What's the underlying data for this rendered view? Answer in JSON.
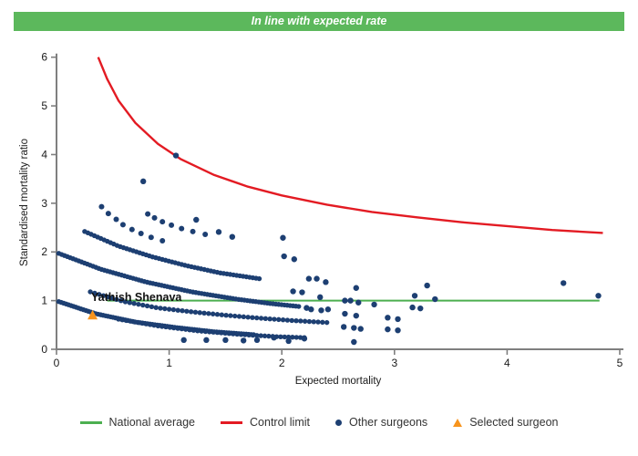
{
  "header": {
    "title": "In line with expected rate",
    "background": "#5CB85C"
  },
  "legend": {
    "items": [
      {
        "label": "National average",
        "marker": "line",
        "color": "#4CAF50"
      },
      {
        "label": "Control limit",
        "marker": "line",
        "color": "#E31B23"
      },
      {
        "label": "Other surgeons",
        "marker": "dot",
        "color": "#1D3F72"
      },
      {
        "label": "Selected surgeon",
        "marker": "triangle",
        "color": "#F7941D"
      }
    ]
  },
  "chart_data": {
    "type": "scatter",
    "xlabel": "Expected mortality",
    "ylabel": "Standardised mortality ratio",
    "xlim": [
      0,
      5
    ],
    "ylim": [
      0,
      6
    ],
    "x_ticks": [
      0,
      1,
      2,
      3,
      4,
      5
    ],
    "y_ticks": [
      0,
      1,
      2,
      3,
      4,
      5,
      6
    ],
    "grid": false,
    "legend_position": "bottom",
    "axis_color": "#7f7f7f",
    "national_average": {
      "y": 1.0,
      "x_start": 0.45,
      "x_end": 4.82,
      "color": "#4CAF50"
    },
    "control_limit": {
      "color": "#E31B23",
      "points": [
        [
          0.37,
          6.0
        ],
        [
          0.45,
          5.55
        ],
        [
          0.55,
          5.11
        ],
        [
          0.7,
          4.65
        ],
        [
          0.9,
          4.22
        ],
        [
          1.1,
          3.91
        ],
        [
          1.4,
          3.58
        ],
        [
          1.7,
          3.34
        ],
        [
          2.0,
          3.16
        ],
        [
          2.4,
          2.97
        ],
        [
          2.8,
          2.82
        ],
        [
          3.2,
          2.71
        ],
        [
          3.6,
          2.61
        ],
        [
          4.0,
          2.53
        ],
        [
          4.4,
          2.45
        ],
        [
          4.85,
          2.39
        ]
      ]
    },
    "other_surgeons": {
      "color": "#1D3F72",
      "bands": [
        {
          "n": 80,
          "control_points": [
            [
              0.02,
              0.98
            ],
            [
              0.35,
              0.73
            ],
            [
              0.7,
              0.56
            ],
            [
              1.05,
              0.45
            ],
            [
              1.4,
              0.36
            ],
            [
              1.75,
              0.3
            ]
          ]
        },
        {
          "n": 85,
          "control_points": [
            [
              0.02,
              1.97
            ],
            [
              0.4,
              1.64
            ],
            [
              0.8,
              1.38
            ],
            [
              1.2,
              1.18
            ],
            [
              1.6,
              1.03
            ],
            [
              1.9,
              0.94
            ],
            [
              2.15,
              0.88
            ]
          ]
        },
        {
          "n": 55,
          "control_points": [
            [
              0.25,
              2.42
            ],
            [
              0.55,
              2.12
            ],
            [
              0.85,
              1.9
            ],
            [
              1.15,
              1.72
            ],
            [
              1.45,
              1.57
            ],
            [
              1.8,
              1.45
            ]
          ]
        },
        {
          "n": 48,
          "control_points": [
            [
              0.55,
              0.62
            ],
            [
              0.9,
              0.48
            ],
            [
              1.25,
              0.38
            ],
            [
              1.6,
              0.31
            ],
            [
              1.95,
              0.26
            ],
            [
              2.2,
              0.24
            ]
          ]
        },
        {
          "n": 55,
          "control_points": [
            [
              0.3,
              1.18
            ],
            [
              0.6,
              0.98
            ],
            [
              0.9,
              0.85
            ],
            [
              1.2,
              0.77
            ],
            [
              1.5,
              0.7
            ],
            [
              1.8,
              0.64
            ],
            [
              2.1,
              0.59
            ],
            [
              2.4,
              0.55
            ]
          ]
        }
      ],
      "sparse_arcs": [
        [
          [
            0.4,
            2.93
          ],
          [
            0.46,
            2.79
          ],
          [
            0.53,
            2.67
          ],
          [
            0.59,
            2.56
          ],
          [
            0.67,
            2.46
          ],
          [
            0.75,
            2.38
          ],
          [
            0.84,
            2.3
          ],
          [
            0.94,
            2.23
          ]
        ],
        [
          [
            0.81,
            2.78
          ],
          [
            0.87,
            2.7
          ],
          [
            0.94,
            2.62
          ],
          [
            1.02,
            2.55
          ],
          [
            1.11,
            2.48
          ],
          [
            1.21,
            2.42
          ],
          [
            1.32,
            2.36
          ]
        ]
      ],
      "scatter": [
        [
          0.77,
          3.45
        ],
        [
          1.06,
          3.98
        ],
        [
          1.24,
          2.66
        ],
        [
          1.44,
          2.41
        ],
        [
          1.56,
          2.31
        ],
        [
          2.01,
          2.29
        ],
        [
          2.02,
          1.91
        ],
        [
          2.11,
          1.85
        ],
        [
          2.24,
          1.45
        ],
        [
          2.31,
          1.45
        ],
        [
          2.39,
          1.38
        ],
        [
          2.1,
          1.19
        ],
        [
          2.18,
          1.17
        ],
        [
          2.34,
          1.07
        ],
        [
          2.66,
          1.26
        ],
        [
          2.56,
          1.0
        ],
        [
          2.61,
          1.0
        ],
        [
          2.68,
          0.96
        ],
        [
          2.82,
          0.92
        ],
        [
          2.22,
          0.85
        ],
        [
          2.26,
          0.82
        ],
        [
          2.35,
          0.8
        ],
        [
          2.41,
          0.82
        ],
        [
          2.56,
          0.73
        ],
        [
          2.66,
          0.69
        ],
        [
          2.55,
          0.46
        ],
        [
          2.64,
          0.44
        ],
        [
          2.7,
          0.42
        ],
        [
          1.13,
          0.19
        ],
        [
          1.33,
          0.19
        ],
        [
          1.5,
          0.19
        ],
        [
          1.66,
          0.18
        ],
        [
          1.78,
          0.19
        ],
        [
          1.93,
          0.24
        ],
        [
          2.06,
          0.17
        ],
        [
          2.2,
          0.22
        ],
        [
          2.64,
          0.15
        ],
        [
          2.94,
          0.65
        ],
        [
          3.03,
          0.62
        ],
        [
          2.94,
          0.41
        ],
        [
          3.03,
          0.39
        ],
        [
          3.18,
          1.1
        ],
        [
          3.29,
          1.31
        ],
        [
          3.36,
          1.03
        ],
        [
          3.16,
          0.86
        ],
        [
          3.23,
          0.84
        ],
        [
          4.5,
          1.36
        ],
        [
          4.81,
          1.1
        ]
      ]
    },
    "selected_surgeon": {
      "x": 0.32,
      "y": 0.7,
      "color": "#F7941D",
      "label": "Yathish Shenava"
    }
  }
}
